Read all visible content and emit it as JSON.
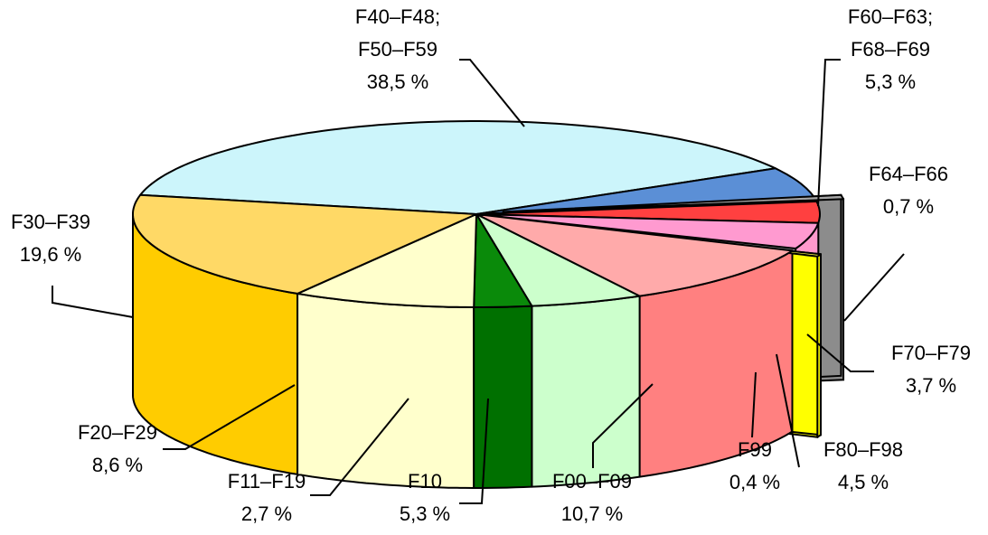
{
  "chart_data": {
    "type": "pie",
    "title": "",
    "categories": [
      "F40–F48; F50–F59",
      "F60–F63; F68–F69",
      "F64–F66",
      "F70–F79",
      "F80–F98",
      "F99",
      "F00–F09",
      "F10",
      "F11–F19",
      "F20–F29",
      "F30–F39"
    ],
    "values": [
      38.5,
      5.3,
      0.7,
      3.7,
      4.5,
      0.4,
      10.7,
      5.3,
      2.7,
      8.6,
      19.6
    ],
    "value_labels": [
      "38,5 %",
      "5,3 %",
      "0,7 %",
      "3,7 %",
      "4,5 %",
      "0,4 %",
      "10,7 %",
      "5,3 %",
      "2,7 %",
      "8,6 %",
      "19,6 %"
    ],
    "label_lines": [
      [
        "F40–F48;",
        "F50–F59",
        "38,5 %"
      ],
      [
        "F60–F63;",
        "F68–F69",
        "5,3 %"
      ],
      [
        "F64–F66",
        "0,7 %"
      ],
      [
        "F70–F79",
        "3,7 %"
      ],
      [
        "F80–F98",
        "4,5 %"
      ],
      [
        "F99",
        "0,4 %"
      ],
      [
        "F00–F09",
        "10,7 %"
      ],
      [
        "F10",
        "5,3 %"
      ],
      [
        "F11–F19",
        "2,7 %"
      ],
      [
        "F20–F29",
        "8,6 %"
      ],
      [
        "F30–F39",
        "19,6 %"
      ]
    ],
    "colors_top": [
      "#ccf5fb",
      "#5b8fd6",
      "#a6a6a6",
      "#ff4040",
      "#ff9ad0",
      "#ffff40",
      "#ffaaaa",
      "#ccffcc",
      "#0a8a0a",
      "#ffffcc",
      "#ffd966"
    ],
    "colors_side": [
      "#a8e3ec",
      "#2f5ea8",
      "#8c8c8c",
      "#ff0000",
      "#ff99cc",
      "#ffff00",
      "#ff8080",
      "#ccffcc",
      "#007000",
      "#ffffcc",
      "#ffcc00"
    ],
    "exploded": [
      "F64–F66",
      "F99"
    ],
    "style": "3d-pie"
  }
}
